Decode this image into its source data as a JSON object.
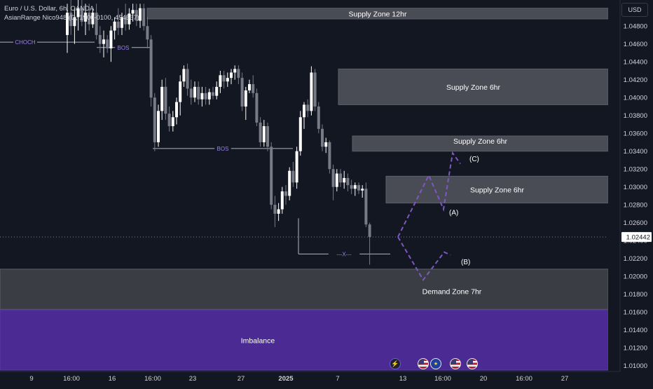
{
  "legend": {
    "symbol_line": "Euro / U.S. Dollar, 6h, OANDA",
    "indicator_line": "AsianRange Nico948 (D, 1900-0100, 454567)"
  },
  "currency_button": "USD",
  "colors": {
    "background": "#131722",
    "candle_up": "#ffffff",
    "candle_down": "#787b86",
    "zone_fill": "#4a4c55",
    "zone_fill_dark": "#3b3d45",
    "imbalance_fill": "#4b2b93",
    "accent_purple": "#7e57c2",
    "grid_dot": "#787b86"
  },
  "icons": [
    "lightning-icon",
    "us-flag-icon",
    "eu-flag-icon"
  ],
  "chart_data": {
    "type": "candlestick",
    "title": "Euro / U.S. Dollar, 6h, OANDA",
    "xlabel": "",
    "ylabel": "",
    "ylim": [
      1.0095,
      1.0495
    ],
    "grid": false,
    "price_axis_ticks": [
      "1.04800",
      "1.04600",
      "1.04400",
      "1.04200",
      "1.04000",
      "1.03800",
      "1.03600",
      "1.03400",
      "1.03200",
      "1.03000",
      "1.02800",
      "1.02600",
      "1.02400",
      "1.02200",
      "1.02000",
      "1.01800",
      "1.01600",
      "1.01400",
      "1.01200",
      "1.01000"
    ],
    "time_axis_ticks": [
      "9",
      "16:00",
      "16",
      "16:00",
      "23",
      "27",
      "2025",
      "7",
      "13",
      "16:00",
      "20",
      "16:00",
      "27"
    ],
    "current_price": "1.02442",
    "candles": [
      {
        "o": 1.047,
        "h": 1.0505,
        "l": 1.045,
        "c": 1.0495
      },
      {
        "o": 1.0495,
        "h": 1.051,
        "l": 1.047,
        "c": 1.048
      },
      {
        "o": 1.048,
        "h": 1.05,
        "l": 1.046,
        "c": 1.049
      },
      {
        "o": 1.049,
        "h": 1.051,
        "l": 1.0475,
        "c": 1.05
      },
      {
        "o": 1.05,
        "h": 1.051,
        "l": 1.048,
        "c": 1.0485
      },
      {
        "o": 1.0485,
        "h": 1.0505,
        "l": 1.047,
        "c": 1.0495
      },
      {
        "o": 1.0495,
        "h": 1.0505,
        "l": 1.0475,
        "c": 1.0482
      },
      {
        "o": 1.0482,
        "h": 1.05,
        "l": 1.0478,
        "c": 1.0495
      },
      {
        "o": 1.0495,
        "h": 1.0505,
        "l": 1.0465,
        "c": 1.047
      },
      {
        "o": 1.047,
        "h": 1.048,
        "l": 1.045,
        "c": 1.046
      },
      {
        "o": 1.046,
        "h": 1.0475,
        "l": 1.0445,
        "c": 1.0465
      },
      {
        "o": 1.0465,
        "h": 1.047,
        "l": 1.045,
        "c": 1.0455
      },
      {
        "o": 1.0455,
        "h": 1.048,
        "l": 1.044,
        "c": 1.0475
      },
      {
        "o": 1.0475,
        "h": 1.049,
        "l": 1.0465,
        "c": 1.0485
      },
      {
        "o": 1.0485,
        "h": 1.05,
        "l": 1.047,
        "c": 1.0478
      },
      {
        "o": 1.0478,
        "h": 1.0495,
        "l": 1.047,
        "c": 1.049
      },
      {
        "o": 1.049,
        "h": 1.0505,
        "l": 1.0475,
        "c": 1.0482
      },
      {
        "o": 1.0482,
        "h": 1.05,
        "l": 1.0476,
        "c": 1.0494
      },
      {
        "o": 1.0494,
        "h": 1.0505,
        "l": 1.0485,
        "c": 1.0498
      },
      {
        "o": 1.0498,
        "h": 1.0505,
        "l": 1.048,
        "c": 1.0486
      },
      {
        "o": 1.0486,
        "h": 1.0505,
        "l": 1.0478,
        "c": 1.05
      },
      {
        "o": 1.05,
        "h": 1.0505,
        "l": 1.0475,
        "c": 1.048
      },
      {
        "o": 1.048,
        "h": 1.049,
        "l": 1.0455,
        "c": 1.0465
      },
      {
        "o": 1.0465,
        "h": 1.047,
        "l": 1.039,
        "c": 1.04
      },
      {
        "o": 1.04,
        "h": 1.0405,
        "l": 1.034,
        "c": 1.035
      },
      {
        "o": 1.035,
        "h": 1.0392,
        "l": 1.0345,
        "c": 1.0385
      },
      {
        "o": 1.0385,
        "h": 1.042,
        "l": 1.0375,
        "c": 1.0412
      },
      {
        "o": 1.0412,
        "h": 1.0422,
        "l": 1.0375,
        "c": 1.0382
      },
      {
        "o": 1.0382,
        "h": 1.039,
        "l": 1.0362,
        "c": 1.0368
      },
      {
        "o": 1.0368,
        "h": 1.0385,
        "l": 1.0362,
        "c": 1.0378
      },
      {
        "o": 1.0378,
        "h": 1.04,
        "l": 1.037,
        "c": 1.0395
      },
      {
        "o": 1.0395,
        "h": 1.0425,
        "l": 1.038,
        "c": 1.0418
      },
      {
        "o": 1.0418,
        "h": 1.0436,
        "l": 1.0412,
        "c": 1.0432
      },
      {
        "o": 1.0432,
        "h": 1.0438,
        "l": 1.0402,
        "c": 1.041
      },
      {
        "o": 1.041,
        "h": 1.042,
        "l": 1.0392,
        "c": 1.04
      },
      {
        "o": 1.04,
        "h": 1.0418,
        "l": 1.0395,
        "c": 1.0412
      },
      {
        "o": 1.0412,
        "h": 1.0418,
        "l": 1.0392,
        "c": 1.0398
      },
      {
        "o": 1.0398,
        "h": 1.0412,
        "l": 1.039,
        "c": 1.0405
      },
      {
        "o": 1.0405,
        "h": 1.0412,
        "l": 1.0392,
        "c": 1.0398
      },
      {
        "o": 1.0398,
        "h": 1.041,
        "l": 1.0392,
        "c": 1.0406
      },
      {
        "o": 1.0406,
        "h": 1.0412,
        "l": 1.0398,
        "c": 1.0402
      },
      {
        "o": 1.0402,
        "h": 1.0418,
        "l": 1.0398,
        "c": 1.0412
      },
      {
        "o": 1.0412,
        "h": 1.043,
        "l": 1.0405,
        "c": 1.0425
      },
      {
        "o": 1.0425,
        "h": 1.043,
        "l": 1.041,
        "c": 1.0418
      },
      {
        "o": 1.0418,
        "h": 1.0428,
        "l": 1.0412,
        "c": 1.0422
      },
      {
        "o": 1.0422,
        "h": 1.0432,
        "l": 1.0415,
        "c": 1.0428
      },
      {
        "o": 1.0428,
        "h": 1.0436,
        "l": 1.042,
        "c": 1.0432
      },
      {
        "o": 1.0432,
        "h": 1.0436,
        "l": 1.0415,
        "c": 1.0422
      },
      {
        "o": 1.0422,
        "h": 1.0428,
        "l": 1.0385,
        "c": 1.039
      },
      {
        "o": 1.039,
        "h": 1.0412,
        "l": 1.0375,
        "c": 1.0408
      },
      {
        "o": 1.0408,
        "h": 1.042,
        "l": 1.0405,
        "c": 1.0415
      },
      {
        "o": 1.0415,
        "h": 1.0425,
        "l": 1.04,
        "c": 1.0405
      },
      {
        "o": 1.0405,
        "h": 1.041,
        "l": 1.0368,
        "c": 1.0372
      },
      {
        "o": 1.0372,
        "h": 1.0378,
        "l": 1.0345,
        "c": 1.035
      },
      {
        "o": 1.035,
        "h": 1.0375,
        "l": 1.0345,
        "c": 1.0368
      },
      {
        "o": 1.0368,
        "h": 1.0372,
        "l": 1.034,
        "c": 1.0345
      },
      {
        "o": 1.0345,
        "h": 1.035,
        "l": 1.0275,
        "c": 1.028
      },
      {
        "o": 1.028,
        "h": 1.029,
        "l": 1.0255,
        "c": 1.027
      },
      {
        "o": 1.027,
        "h": 1.0282,
        "l": 1.0262,
        "c": 1.0275
      },
      {
        "o": 1.0275,
        "h": 1.03,
        "l": 1.027,
        "c": 1.0295
      },
      {
        "o": 1.0295,
        "h": 1.0302,
        "l": 1.028,
        "c": 1.029
      },
      {
        "o": 1.029,
        "h": 1.0322,
        "l": 1.0285,
        "c": 1.0318
      },
      {
        "o": 1.0318,
        "h": 1.0328,
        "l": 1.03,
        "c": 1.0305
      },
      {
        "o": 1.0305,
        "h": 1.0345,
        "l": 1.0298,
        "c": 1.034
      },
      {
        "o": 1.034,
        "h": 1.0385,
        "l": 1.0335,
        "c": 1.0378
      },
      {
        "o": 1.0378,
        "h": 1.0395,
        "l": 1.0365,
        "c": 1.0392
      },
      {
        "o": 1.0392,
        "h": 1.0398,
        "l": 1.0378,
        "c": 1.0385
      },
      {
        "o": 1.0385,
        "h": 1.0435,
        "l": 1.038,
        "c": 1.0428
      },
      {
        "o": 1.0428,
        "h": 1.0432,
        "l": 1.0385,
        "c": 1.039
      },
      {
        "o": 1.039,
        "h": 1.0395,
        "l": 1.036,
        "c": 1.0365
      },
      {
        "o": 1.0365,
        "h": 1.037,
        "l": 1.034,
        "c": 1.0345
      },
      {
        "o": 1.0345,
        "h": 1.0355,
        "l": 1.0338,
        "c": 1.035
      },
      {
        "o": 1.035,
        "h": 1.0352,
        "l": 1.0315,
        "c": 1.032
      },
      {
        "o": 1.032,
        "h": 1.0325,
        "l": 1.0285,
        "c": 1.03
      },
      {
        "o": 1.03,
        "h": 1.032,
        "l": 1.0295,
        "c": 1.0315
      },
      {
        "o": 1.0315,
        "h": 1.032,
        "l": 1.03,
        "c": 1.0305
      },
      {
        "o": 1.0305,
        "h": 1.0318,
        "l": 1.0298,
        "c": 1.031
      },
      {
        "o": 1.031,
        "h": 1.0315,
        "l": 1.0295,
        "c": 1.0302
      },
      {
        "o": 1.0302,
        "h": 1.0308,
        "l": 1.0292,
        "c": 1.0298
      },
      {
        "o": 1.0298,
        "h": 1.0305,
        "l": 1.029,
        "c": 1.0302
      },
      {
        "o": 1.0302,
        "h": 1.0305,
        "l": 1.0292,
        "c": 1.0296
      },
      {
        "o": 1.0296,
        "h": 1.0302,
        "l": 1.0288,
        "c": 1.0298
      },
      {
        "o": 1.0298,
        "h": 1.0305,
        "l": 1.0255,
        "c": 1.0258
      },
      {
        "o": 1.0258,
        "h": 1.026,
        "l": 1.0213,
        "c": 1.0244
      }
    ],
    "zones": [
      {
        "label": "Supply Zone 12hr",
        "top": 1.05,
        "bottom": 1.0488
      },
      {
        "label": "Supply Zone 6hr",
        "top": 1.0432,
        "bottom": 1.0392
      },
      {
        "label": "Supply Zone 6hr",
        "top": 1.0357,
        "bottom": 1.034
      },
      {
        "label": "Supply Zone 6hr",
        "top": 1.0312,
        "bottom": 1.0282
      },
      {
        "label": "Demand Zone 7hr",
        "top": 1.0208,
        "bottom": 1.0163
      },
      {
        "label": "Imbalance",
        "top": 1.0162,
        "bottom": 1.0095
      }
    ],
    "annotations": [
      {
        "text": "CHOCH",
        "price": 1.0462
      },
      {
        "text": "BOS",
        "price": 1.0456
      },
      {
        "text": "BOS",
        "price": 1.0343
      },
      {
        "text": "---X---",
        "price": 1.0225
      },
      {
        "text": "(C)",
        "price": 1.0331
      },
      {
        "text": "(A)",
        "price": 1.0271
      },
      {
        "text": "(B)",
        "price": 1.0216
      }
    ],
    "projection_path": [
      [
        1.0244,
        1.0313,
        1.0275,
        1.0338,
        1.0326
      ],
      [
        1.0244,
        1.0196,
        1.0227,
        1.0224
      ]
    ]
  }
}
